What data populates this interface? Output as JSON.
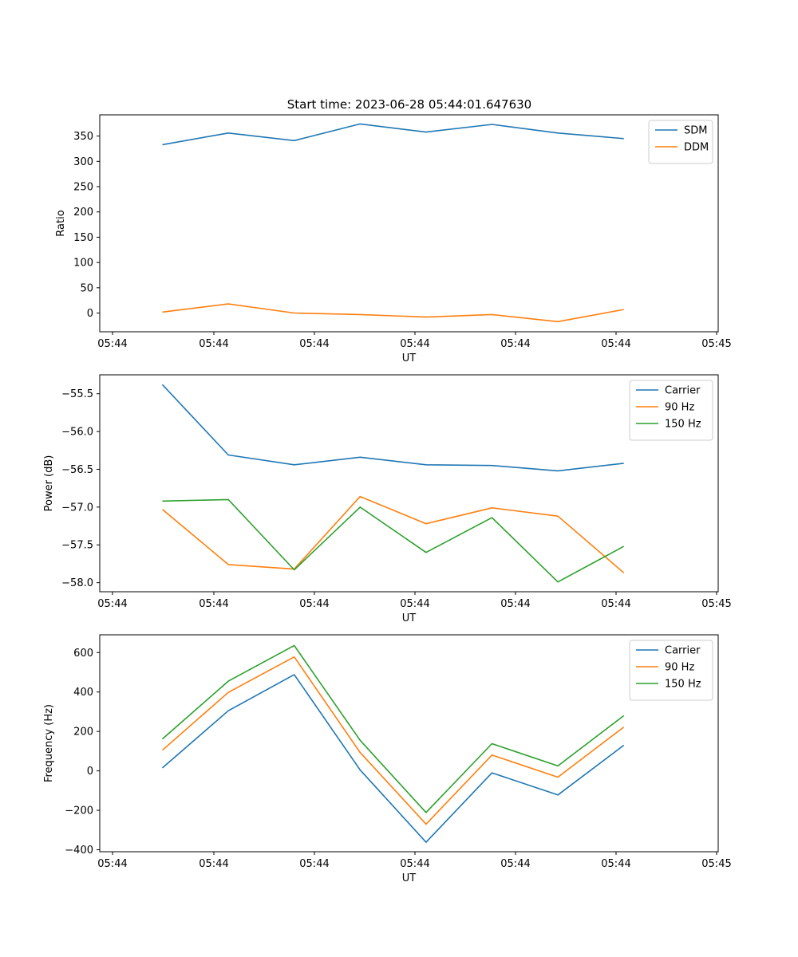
{
  "title": "Start time: 2023-06-28 05:44:01.647630",
  "colors": {
    "blue": "#1f77b4",
    "orange": "#ff7f0e",
    "green": "#2ca02c"
  },
  "chart_data": [
    {
      "type": "line",
      "xlabel": "UT",
      "ylabel": "Ratio",
      "x_tick_labels": [
        "05:44",
        "05:44",
        "05:44",
        "05:44",
        "05:44",
        "05:44",
        "05:45"
      ],
      "ylim": [
        -37,
        392
      ],
      "y_ticks": [
        0,
        50,
        100,
        150,
        200,
        250,
        300,
        350
      ],
      "legend_position": "top-right",
      "grid": false,
      "series": [
        {
          "name": "SDM",
          "color": "#1f77b4",
          "values": [
            333,
            356,
            341,
            374,
            358,
            373,
            356,
            345
          ]
        },
        {
          "name": "DDM",
          "color": "#ff7f0e",
          "values": [
            2,
            18,
            0,
            -3,
            -8,
            -3,
            -17,
            7
          ]
        }
      ]
    },
    {
      "type": "line",
      "xlabel": "UT",
      "ylabel": "Power (dB)",
      "x_tick_labels": [
        "05:44",
        "05:44",
        "05:44",
        "05:44",
        "05:44",
        "05:44",
        "05:45"
      ],
      "ylim": [
        -58.12,
        -55.25
      ],
      "y_ticks": [
        -58.0,
        -57.5,
        -57.0,
        -56.5,
        -56.0,
        -55.5
      ],
      "legend_position": "top-right",
      "grid": false,
      "series": [
        {
          "name": "Carrier",
          "color": "#1f77b4",
          "values": [
            -55.38,
            -56.31,
            -56.44,
            -56.34,
            -56.44,
            -56.45,
            -56.52,
            -56.42
          ]
        },
        {
          "name": "90 Hz",
          "color": "#ff7f0e",
          "values": [
            -57.03,
            -57.76,
            -57.82,
            -56.86,
            -57.22,
            -57.01,
            -57.12,
            -57.87
          ]
        },
        {
          "name": "150 Hz",
          "color": "#2ca02c",
          "values": [
            -56.92,
            -56.9,
            -57.83,
            -57.0,
            -57.6,
            -57.14,
            -57.99,
            -57.52
          ]
        }
      ]
    },
    {
      "type": "line",
      "xlabel": "UT",
      "ylabel": "Frequency (Hz)",
      "x_tick_labels": [
        "05:44",
        "05:44",
        "05:44",
        "05:44",
        "05:44",
        "05:44",
        "05:45"
      ],
      "ylim": [
        -410,
        690
      ],
      "y_ticks": [
        -400,
        -200,
        0,
        200,
        400,
        600
      ],
      "legend_position": "top-right",
      "grid": false,
      "series": [
        {
          "name": "Carrier",
          "color": "#1f77b4",
          "values": [
            15,
            305,
            488,
            5,
            -362,
            -10,
            -122,
            130
          ]
        },
        {
          "name": "90 Hz",
          "color": "#ff7f0e",
          "values": [
            105,
            398,
            578,
            93,
            -270,
            80,
            -32,
            222
          ]
        },
        {
          "name": "150 Hz",
          "color": "#2ca02c",
          "values": [
            162,
            455,
            636,
            155,
            -211,
            138,
            25,
            280
          ]
        }
      ]
    }
  ]
}
